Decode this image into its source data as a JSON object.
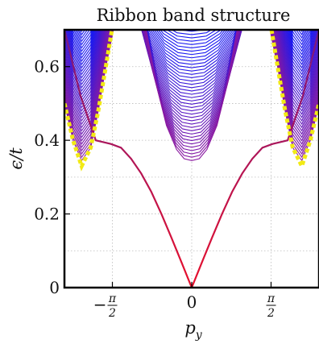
{
  "chart_data": {
    "type": "line",
    "title": "Ribbon band structure",
    "xlabel": "p_y",
    "xlabel_parts": {
      "base": "p",
      "sub": "y"
    },
    "ylabel": "ϵ/t",
    "xlim": [
      -2.52,
      2.52
    ],
    "ylim": [
      0,
      0.7
    ],
    "x_ticks": [
      {
        "value": -1.5708,
        "sign": "−",
        "num": "π",
        "den": "2"
      },
      {
        "value": 0,
        "sign": "",
        "num": "",
        "den": "",
        "text": "0"
      },
      {
        "value": 1.5708,
        "sign": "",
        "num": "π",
        "den": "2"
      }
    ],
    "y_ticks": [
      {
        "value": 0,
        "label": "0"
      },
      {
        "value": 0.2,
        "label": "0.2"
      },
      {
        "value": 0.4,
        "label": "0.4"
      },
      {
        "value": 0.6,
        "label": "0.6"
      }
    ],
    "grid": true,
    "series": [
      {
        "role": "edge-state",
        "x": [
          -2.52,
          -2.2,
          -1.9,
          -1.6,
          -1.4,
          -1.2,
          -1.0,
          -0.8,
          -0.6,
          -0.4,
          -0.2,
          0,
          0.2,
          0.4,
          0.6,
          0.8,
          1.0,
          1.2,
          1.4,
          1.6,
          1.9,
          2.2,
          2.52
        ],
        "y": [
          0.7,
          0.52,
          0.4,
          0.39,
          0.38,
          0.35,
          0.31,
          0.26,
          0.2,
          0.135,
          0.068,
          0.0,
          0.068,
          0.135,
          0.2,
          0.26,
          0.31,
          0.35,
          0.38,
          0.39,
          0.4,
          0.52,
          0.7
        ]
      },
      {
        "role": "bulk-band-lowest",
        "x": [
          -0.9,
          -0.7,
          -0.5,
          -0.3,
          -0.15,
          0,
          0.15,
          0.3,
          0.5,
          0.7,
          0.9
        ],
        "y": [
          0.7,
          0.55,
          0.44,
          0.375,
          0.35,
          0.345,
          0.35,
          0.375,
          0.44,
          0.55,
          0.7
        ]
      },
      {
        "role": "bulk-band-outer-lowest",
        "x": [
          -2.52,
          -2.35,
          -2.18,
          -2.0,
          -1.85,
          -1.7,
          -1.55
        ],
        "y": [
          0.5,
          0.4,
          0.345,
          0.38,
          0.48,
          0.6,
          0.7
        ]
      },
      {
        "role": "bulk-band-outer-lowest-right",
        "x": [
          1.55,
          1.7,
          1.85,
          2.0,
          2.18,
          2.35,
          2.52
        ],
        "y": [
          0.7,
          0.6,
          0.48,
          0.38,
          0.345,
          0.4,
          0.5
        ]
      },
      {
        "role": "continuum-boundary",
        "style": "dashed",
        "x": [
          -2.52,
          -2.35,
          -2.18,
          -2.0,
          -1.85,
          -1.7,
          -1.58
        ],
        "y": [
          0.5,
          0.4,
          0.33,
          0.38,
          0.48,
          0.6,
          0.7
        ]
      },
      {
        "role": "continuum-boundary-right",
        "style": "dashed",
        "x": [
          1.58,
          1.7,
          1.85,
          2.0,
          2.18,
          2.35,
          2.52
        ],
        "y": [
          0.7,
          0.6,
          0.48,
          0.38,
          0.33,
          0.4,
          0.5
        ]
      }
    ],
    "colors": {
      "edge_state_bottom": "#e8102c",
      "edge_state_top": "#7a1a80",
      "bulk_low": "#8a18a0",
      "bulk_high": "#1818f0",
      "boundary": "#f2ea14",
      "grid": "#bbbbbb",
      "frame": "#000000"
    }
  }
}
